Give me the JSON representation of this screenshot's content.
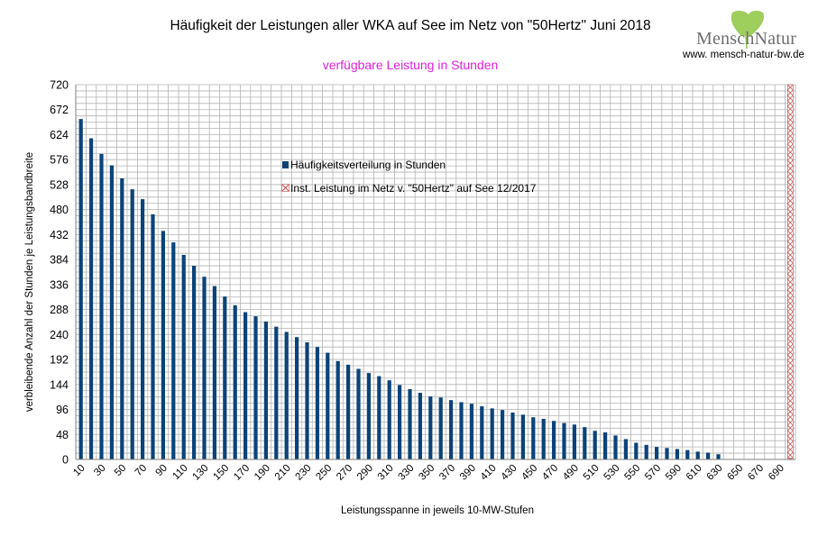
{
  "title": "Häufigkeit der Leistungen aller WKA auf See im Netz von \"50Hertz\" Juni 2018",
  "subtitle": "verfügbare Leistung in Stunden",
  "logo": {
    "text": "MenschNatur",
    "url": "www. mensch-natur-bw.de",
    "icon": "ginkgo-leaf-icon"
  },
  "colors": {
    "bars": "#0a4379",
    "capacity_marker": "#c0504d",
    "subtitle": "#e020e0",
    "grid": "#b3b3b3"
  },
  "chart_data": {
    "type": "bar",
    "title": "Häufigkeit der Leistungen aller WKA auf See im Netz von \"50Hertz\" Juni 2018",
    "subtitle": "verfügbare Leistung in Stunden",
    "xlabel": "Leistungsspanne in jeweils 10-MW-Stufen",
    "ylabel": "verbleibende Anzahl der Stunden je Leistungsbandbreite",
    "ylim": [
      0,
      720
    ],
    "yticks": [
      0,
      48,
      96,
      144,
      192,
      240,
      288,
      336,
      384,
      432,
      480,
      528,
      576,
      624,
      672,
      720
    ],
    "categories": [
      10,
      20,
      30,
      40,
      50,
      60,
      70,
      80,
      90,
      100,
      110,
      120,
      130,
      140,
      150,
      160,
      170,
      180,
      190,
      200,
      210,
      220,
      230,
      240,
      250,
      260,
      270,
      280,
      290,
      300,
      310,
      320,
      330,
      340,
      350,
      360,
      370,
      380,
      390,
      400,
      410,
      420,
      430,
      440,
      450,
      460,
      470,
      480,
      490,
      500,
      510,
      520,
      530,
      540,
      550,
      560,
      570,
      580,
      590,
      600,
      610,
      620,
      630,
      640,
      650,
      660,
      670,
      680,
      690,
      700
    ],
    "xtick_labels": [
      "10",
      "30",
      "50",
      "70",
      "90",
      "110",
      "130",
      "150",
      "170",
      "190",
      "210",
      "230",
      "250",
      "270",
      "290",
      "310",
      "330",
      "350",
      "370",
      "390",
      "410",
      "430",
      "450",
      "470",
      "490",
      "510",
      "530",
      "550",
      "570",
      "590",
      "610",
      "630",
      "650",
      "670",
      "690"
    ],
    "grid": true,
    "legend_position": "center",
    "series": [
      {
        "name": "Häufigkeitsverteilung in Stunden",
        "values": [
          654,
          617,
          587,
          565,
          540,
          519,
          500,
          471,
          439,
          417,
          393,
          372,
          351,
          333,
          313,
          296,
          283,
          275,
          265,
          255,
          245,
          235,
          225,
          216,
          205,
          189,
          182,
          174,
          166,
          160,
          152,
          143,
          135,
          128,
          121,
          119,
          114,
          110,
          107,
          102,
          98,
          95,
          90,
          86,
          81,
          78,
          74,
          70,
          67,
          62,
          55,
          52,
          46,
          39,
          32,
          28,
          24,
          22,
          20,
          18,
          15,
          13,
          10,
          0,
          0,
          0,
          0,
          0,
          0,
          0
        ]
      },
      {
        "name": "Inst. Leistung im Netz v. \"50Hertz\" auf See 12/2017",
        "x": 700,
        "value": 720,
        "marker": "cross-hatch"
      }
    ]
  }
}
